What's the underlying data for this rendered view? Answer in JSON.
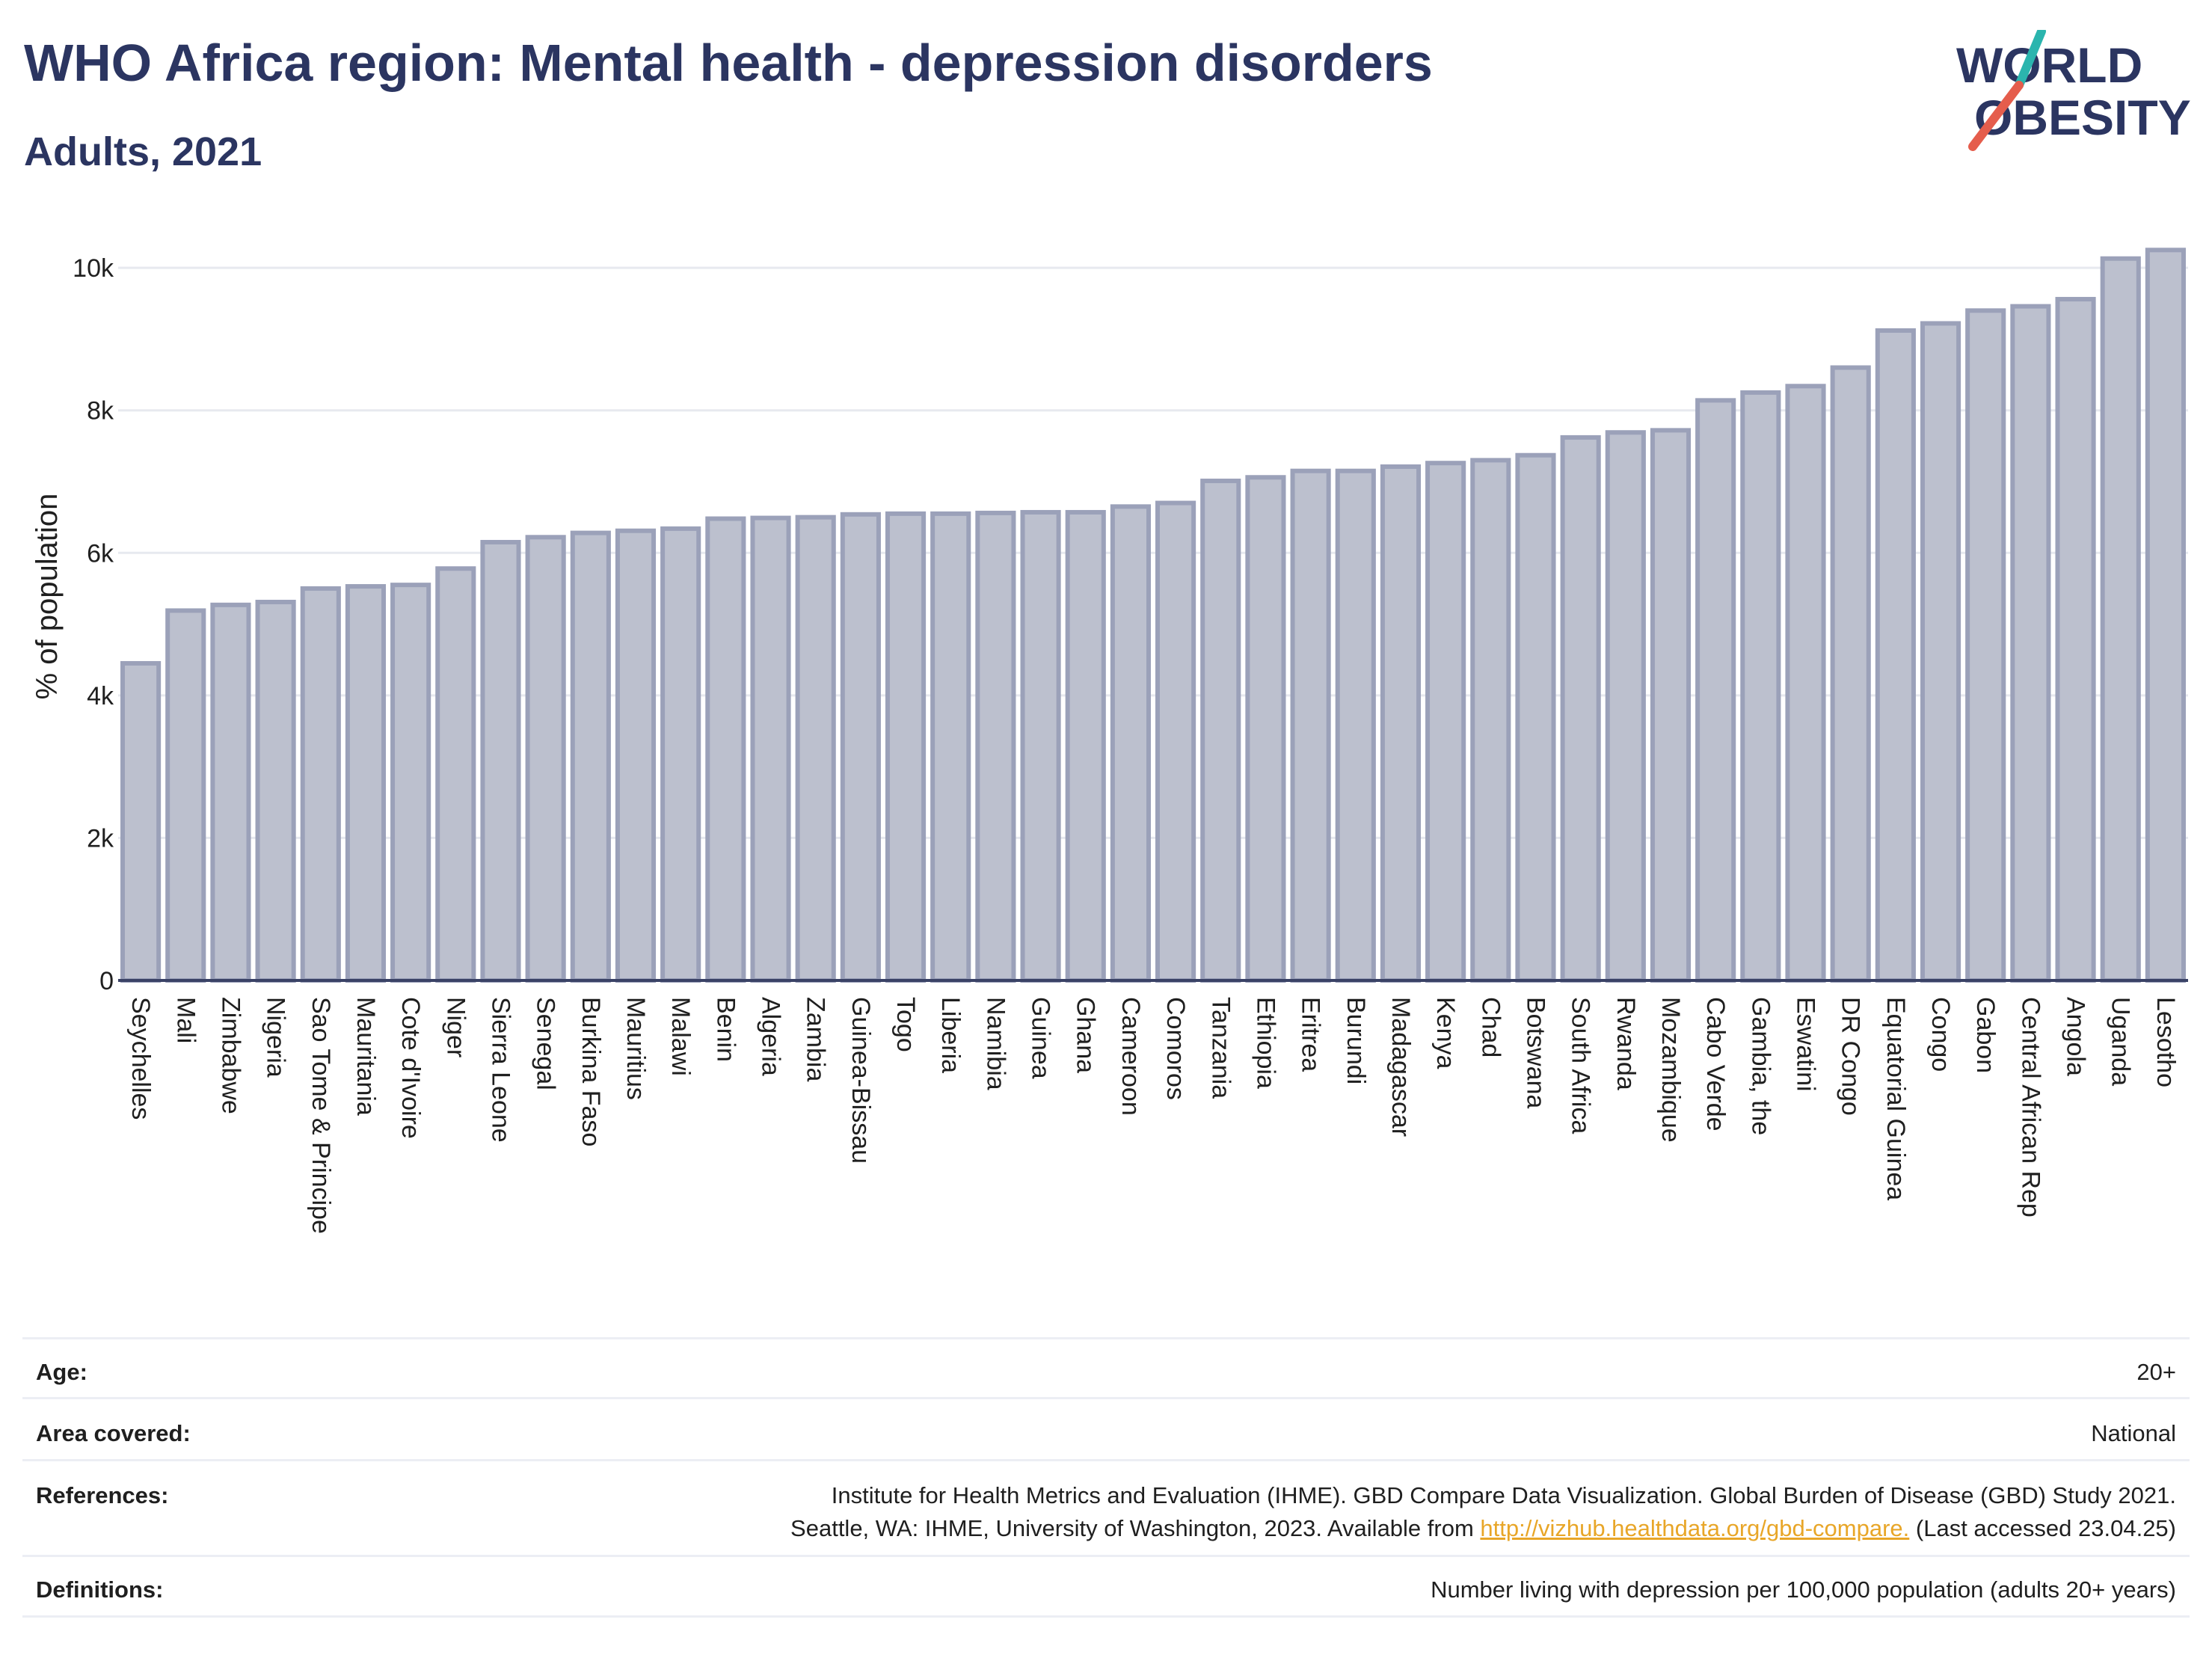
{
  "header": {
    "title": "WHO Africa region: Mental health - depression disorders",
    "subtitle": "Adults, 2021"
  },
  "logo": {
    "line1": "WORLD",
    "line2": "OBESITY"
  },
  "colors": {
    "text": "#2b3561",
    "bar_fill": "#bcc0ce",
    "bar_stroke": "#9ba1b9",
    "grid": "#e7e9ef",
    "link": "#e8a628",
    "logo_teal": "#2bb5ae",
    "logo_red": "#e55d4c"
  },
  "chart_data": {
    "type": "bar",
    "title": "WHO Africa region: Mental health - depression disorders",
    "subtitle": "Adults, 2021",
    "ylabel": "% of population",
    "xlabel": "",
    "ylim": [
      0,
      10400
    ],
    "yticks": [
      0,
      2000,
      4000,
      6000,
      8000,
      10000
    ],
    "ytick_labels": [
      "0",
      "2k",
      "4k",
      "6k",
      "8k",
      "10k"
    ],
    "grid": true,
    "categories": [
      "Seychelles",
      "Mali",
      "Zimbabwe",
      "Nigeria",
      "Sao Tome & Principe",
      "Mauritania",
      "Cote d'Ivoire",
      "Niger",
      "Sierra Leone",
      "Senegal",
      "Burkina Faso",
      "Mauritius",
      "Malawi",
      "Benin",
      "Algeria",
      "Zambia",
      "Guinea-Bissau",
      "Togo",
      "Liberia",
      "Namibia",
      "Guinea",
      "Ghana",
      "Cameroon",
      "Comoros",
      "Tanzania",
      "Ethiopia",
      "Eritrea",
      "Burundi",
      "Madagascar",
      "Kenya",
      "Chad",
      "Botswana",
      "South Africa",
      "Rwanda",
      "Mozambique",
      "Cabo Verde",
      "Gambia, the",
      "Eswatini",
      "DR Congo",
      "Equatorial Guinea",
      "Congo",
      "Gabon",
      "Central African Rep",
      "Angola",
      "Uganda",
      "Lesotho"
    ],
    "values": [
      4450,
      5190,
      5270,
      5310,
      5500,
      5530,
      5550,
      5780,
      6150,
      6220,
      6280,
      6310,
      6340,
      6480,
      6490,
      6500,
      6540,
      6550,
      6550,
      6560,
      6570,
      6570,
      6650,
      6700,
      7010,
      7060,
      7150,
      7150,
      7210,
      7260,
      7300,
      7370,
      7620,
      7690,
      7720,
      8140,
      8250,
      8340,
      8600,
      9120,
      9220,
      9400,
      9460,
      9560,
      10130,
      10250
    ]
  },
  "info": {
    "age_label": "Age:",
    "age_value": "20+",
    "area_label": "Area covered:",
    "area_value": "National",
    "ref_label": "References:",
    "ref_line1": "Institute for Health Metrics and Evaluation (IHME). GBD Compare Data Visualization. Global Burden of Disease (GBD) Study 2021.",
    "ref_line2_pre": "Seattle, WA: IHME, University of Washington, 2023. Available from ",
    "ref_link": "http://vizhub.healthdata.org/gbd-compare.",
    "ref_line2_post": " (Last accessed 23.04.25)",
    "def_label": "Definitions:",
    "def_value": "Number living with depression per 100,000 population (adults 20+ years)"
  }
}
